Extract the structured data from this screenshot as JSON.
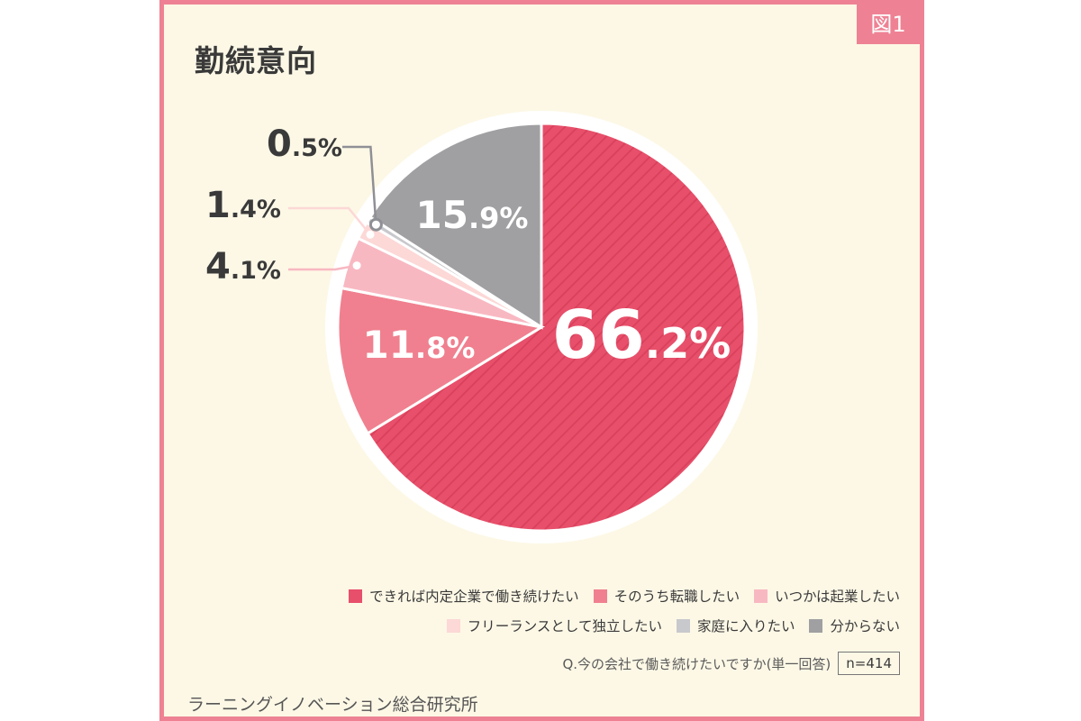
{
  "figure_label": "図1",
  "chart_data": {
    "type": "pie",
    "title": "勤続意向",
    "slices": [
      {
        "label": "できれば内定企業で働き続けたい",
        "value": 66.2,
        "display": "66.2%",
        "color": "#e74f6a",
        "striped": true
      },
      {
        "label": "そのうち転職したい",
        "value": 11.8,
        "display": "11.8%",
        "color": "#f0808f"
      },
      {
        "label": "いつかは起業したい",
        "value": 4.1,
        "display": "4.1%",
        "color": "#f8b8c2"
      },
      {
        "label": "フリーランスとして独立したい",
        "value": 1.4,
        "display": "1.4%",
        "color": "#fcd8d6"
      },
      {
        "label": "家庭に入りたい",
        "value": 0.5,
        "display": "0.5%",
        "color": "#c8c9cd"
      },
      {
        "label": "分からない",
        "value": 15.9,
        "display": "15.9%",
        "color": "#a09fa2"
      }
    ],
    "start_angle": "12 o'clock",
    "direction": "clockwise",
    "legend_position": "bottom-right"
  },
  "question": "Q.今の会社で働き続けたいですか(単一回答)",
  "sample_size": "n=414",
  "source": "ラーニングイノベーション総合研究所"
}
